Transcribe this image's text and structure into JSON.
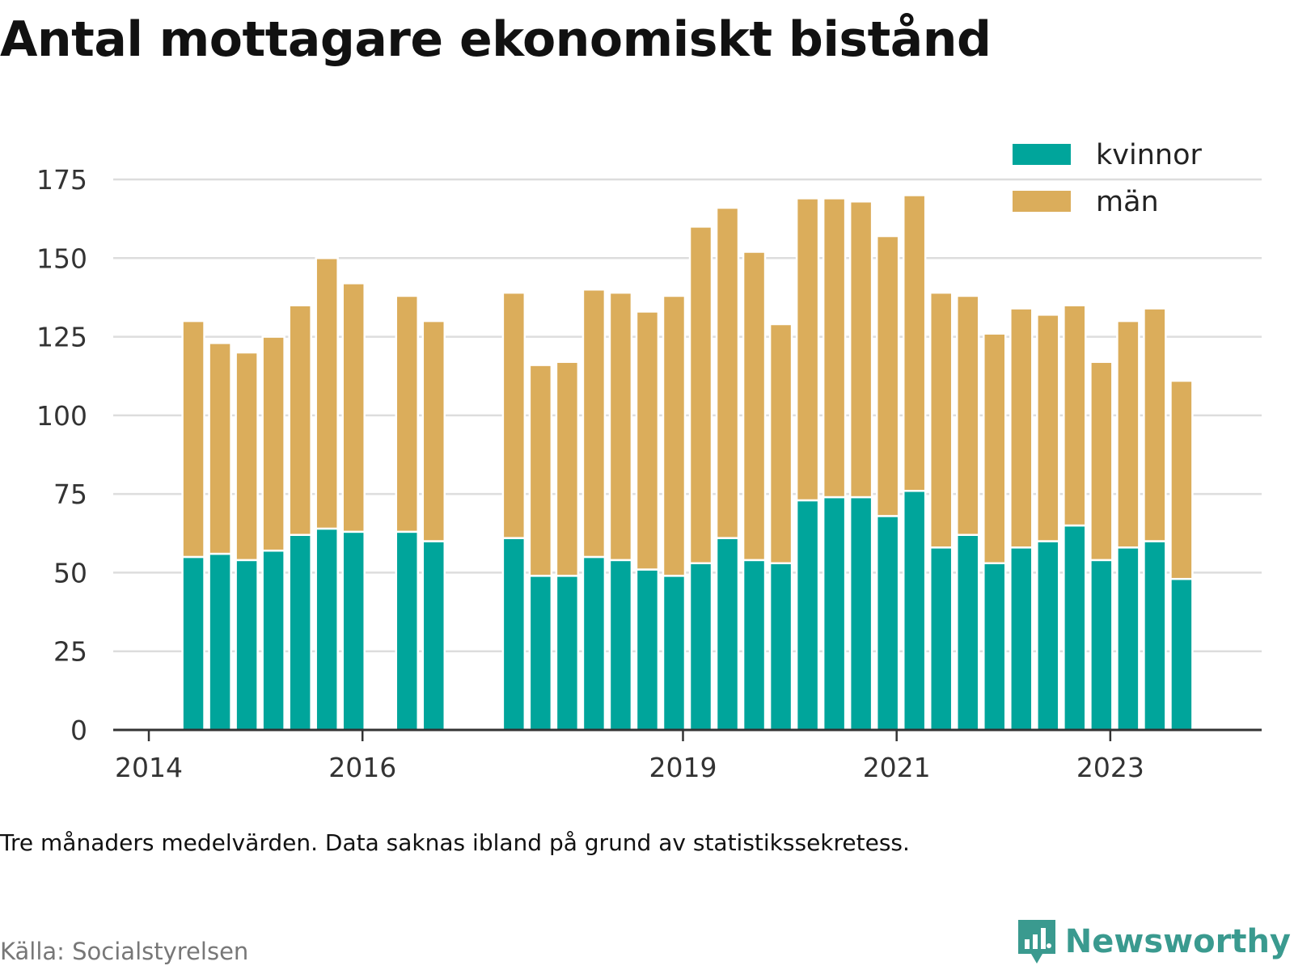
{
  "title": "Antal mottagare ekonomiskt bistånd",
  "note": "Tre månaders medelvärden. Data saknas ibland på grund av statistikssekretess.",
  "source": "Källa: Socialstyrelsen",
  "brand": {
    "name": "Newsworthy",
    "icon": "bar-chart-logo-icon"
  },
  "colors": {
    "kvinnor": "#00a59b",
    "man": "#dbad5b",
    "grid": "#dddddd",
    "axis": "#333333"
  },
  "chart_data": {
    "type": "bar",
    "stacked": true,
    "title": "Antal mottagare ekonomiskt bistånd",
    "xlabel": "",
    "ylabel": "",
    "ylim": [
      0,
      175
    ],
    "yticks": [
      0,
      25,
      50,
      75,
      100,
      125,
      150,
      175
    ],
    "xlim": [
      "2013-09",
      "2024-06"
    ],
    "xticks": [
      "2014",
      "2016",
      "2019",
      "2021",
      "2023"
    ],
    "grid": true,
    "legend": "top-right",
    "categories": [
      "2014-05",
      "2014-08",
      "2014-11",
      "2015-02",
      "2015-05",
      "2015-08",
      "2015-11",
      "2016-05",
      "2016-08",
      "2017-05",
      "2017-08",
      "2017-11",
      "2018-02",
      "2018-05",
      "2018-08",
      "2018-11",
      "2019-02",
      "2019-05",
      "2019-08",
      "2019-11",
      "2020-02",
      "2020-05",
      "2020-08",
      "2020-11",
      "2021-02",
      "2021-05",
      "2021-08",
      "2021-11",
      "2022-02",
      "2022-05",
      "2022-08",
      "2022-11",
      "2023-02",
      "2023-05",
      "2023-08"
    ],
    "series": [
      {
        "name": "kvinnor",
        "color": "#00a59b",
        "values": [
          55,
          56,
          54,
          57,
          62,
          64,
          63,
          63,
          60,
          61,
          49,
          49,
          55,
          54,
          51,
          49,
          53,
          61,
          54,
          53,
          73,
          74,
          74,
          68,
          76,
          58,
          62,
          53,
          58,
          60,
          65,
          54,
          58,
          60,
          48
        ]
      },
      {
        "name": "män",
        "color": "#dbad5b",
        "values": [
          75,
          67,
          66,
          68,
          73,
          86,
          79,
          75,
          70,
          78,
          67,
          68,
          85,
          85,
          82,
          89,
          107,
          105,
          98,
          76,
          96,
          95,
          94,
          89,
          94,
          81,
          76,
          73,
          76,
          72,
          70,
          63,
          72,
          74,
          63
        ]
      }
    ]
  }
}
